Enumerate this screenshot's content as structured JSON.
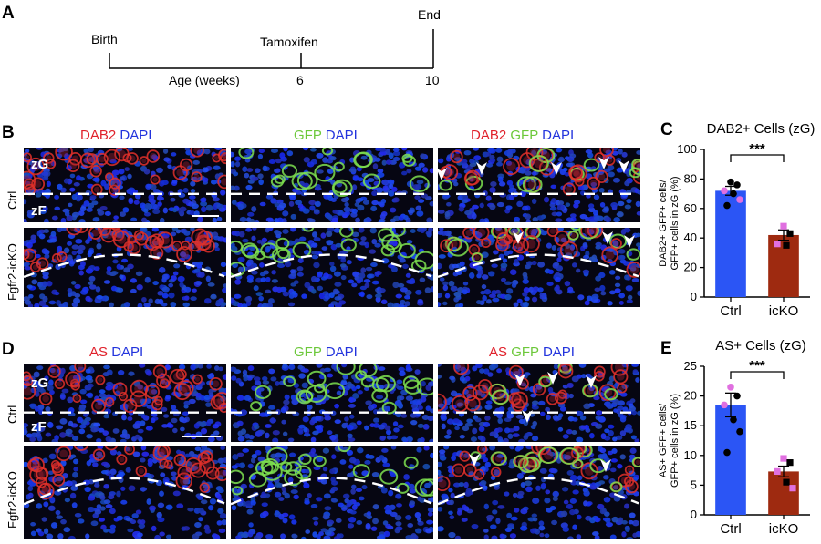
{
  "panel_letters": {
    "A": "A",
    "B": "B",
    "C": "C",
    "D": "D",
    "E": "E"
  },
  "timeline": {
    "birth": "Birth",
    "tamoxifen": "Tamoxifen",
    "end": "End",
    "axis_label": "Age (weeks)",
    "tick6": "6",
    "tick10": "10"
  },
  "panelB": {
    "headers": [
      {
        "a": "DAB2",
        "b": "DAPI"
      },
      {
        "a": "GFP",
        "b": "DAPI"
      },
      {
        "a": "DAB2",
        "b": "GFP",
        "c": "DAPI"
      }
    ],
    "rows": [
      "Ctrl",
      "Fgfr2-icKO"
    ],
    "zone_top": "zG",
    "zone_bottom": "zF"
  },
  "panelD": {
    "headers": [
      {
        "a": "AS",
        "b": "DAPI"
      },
      {
        "a": "GFP",
        "b": "DAPI"
      },
      {
        "a": "AS",
        "b": "GFP",
        "c": "DAPI"
      }
    ],
    "rows": [
      "Ctrl",
      "Fgfr2-icKO"
    ],
    "zone_top": "zG",
    "zone_bottom": "zF"
  },
  "colors": {
    "ctrl": "#2b55f5",
    "icko": "#9e2a10",
    "red": "#e0202a",
    "green": "#6cc83a",
    "blue": "#2233dd",
    "pink": "#e070e0"
  },
  "chart_data": [
    {
      "type": "bar",
      "title": "DAB2+ Cells (zG)",
      "ylabel": "DAB2+ GFP+ cells/ GFP+ cells in zG (%)",
      "categories": [
        "Ctrl",
        "icKO"
      ],
      "values": [
        72,
        42
      ],
      "sem": [
        3,
        3.5
      ],
      "ylim": [
        0,
        100
      ],
      "yticks": [
        0,
        20,
        40,
        60,
        80,
        100
      ],
      "significance": "***",
      "points": [
        {
          "group": "Ctrl",
          "value": 78,
          "color": "black"
        },
        {
          "group": "Ctrl",
          "value": 76,
          "color": "black"
        },
        {
          "group": "Ctrl",
          "value": 72,
          "color": "pink"
        },
        {
          "group": "Ctrl",
          "value": 70,
          "color": "black"
        },
        {
          "group": "Ctrl",
          "value": 66,
          "color": "pink"
        },
        {
          "group": "Ctrl",
          "value": 62,
          "color": "black"
        },
        {
          "group": "icKO",
          "value": 48,
          "color": "pink"
        },
        {
          "group": "icKO",
          "value": 43,
          "color": "black"
        },
        {
          "group": "icKO",
          "value": 36,
          "color": "pink"
        },
        {
          "group": "icKO",
          "value": 35,
          "color": "black"
        }
      ]
    },
    {
      "type": "bar",
      "title": "AS+ Cells (zG)",
      "ylabel": "AS+ GFP+ cells/ GFP+ cells in zG (%)",
      "categories": [
        "Ctrl",
        "icKO"
      ],
      "values": [
        18.5,
        7.3
      ],
      "sem": [
        2.0,
        0.9
      ],
      "ylim": [
        0,
        25
      ],
      "yticks": [
        0,
        5,
        10,
        15,
        20,
        25
      ],
      "significance": "***",
      "points": [
        {
          "group": "Ctrl",
          "value": 21.5,
          "color": "pink"
        },
        {
          "group": "Ctrl",
          "value": 20.0,
          "color": "black"
        },
        {
          "group": "Ctrl",
          "value": 18.5,
          "color": "pink"
        },
        {
          "group": "Ctrl",
          "value": 16.0,
          "color": "black"
        },
        {
          "group": "Ctrl",
          "value": 14.0,
          "color": "black"
        },
        {
          "group": "Ctrl",
          "value": 10.5,
          "color": "black"
        },
        {
          "group": "icKO",
          "value": 9.5,
          "color": "pink"
        },
        {
          "group": "icKO",
          "value": 8.8,
          "color": "black"
        },
        {
          "group": "icKO",
          "value": 7.3,
          "color": "pink"
        },
        {
          "group": "icKO",
          "value": 5.5,
          "color": "black"
        },
        {
          "group": "icKO",
          "value": 4.5,
          "color": "pink"
        }
      ]
    }
  ]
}
